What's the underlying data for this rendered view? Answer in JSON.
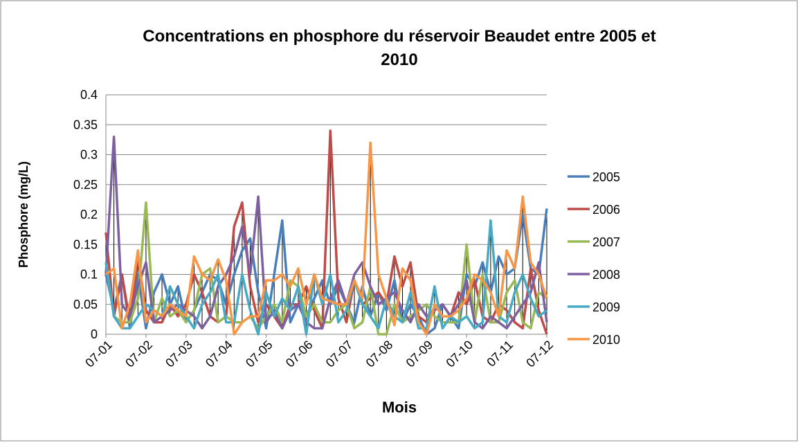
{
  "chart_data": {
    "type": "line",
    "title": "Concentrations en phosphore du réservoir Beaudet entre 2005 et 2010",
    "x_label": "Mois",
    "y_label": "Phosphore (mg/L)",
    "categories": [
      "07-01",
      null,
      null,
      null,
      null,
      "07-02",
      null,
      null,
      null,
      null,
      "07-03",
      null,
      null,
      null,
      null,
      "07-04",
      null,
      null,
      null,
      null,
      "07-05",
      null,
      null,
      null,
      null,
      "07-06",
      null,
      null,
      null,
      null,
      "07-07",
      null,
      null,
      null,
      null,
      "07-08",
      null,
      null,
      null,
      null,
      "07-09",
      null,
      null,
      null,
      null,
      "07-10",
      null,
      null,
      null,
      null,
      "07-11",
      null,
      null,
      null,
      null,
      "07-12"
    ],
    "series": [
      {
        "name": "2005",
        "color": "#4a7ebb",
        "values": [
          0.1,
          0.04,
          0.1,
          0.01,
          0.1,
          0.01,
          0.07,
          0.1,
          0.05,
          0.08,
          0.02,
          0.04,
          0.07,
          0.1,
          0.09,
          0.05,
          0.1,
          0.14,
          0.16,
          0.07,
          0.01,
          0.1,
          0.19,
          0.02,
          0.05,
          0.03,
          0.06,
          0.09,
          0.05,
          0.08,
          0.05,
          0.02,
          0.08,
          0.03,
          0.07,
          0.04,
          0.09,
          0.02,
          0.05,
          0.03,
          0.0,
          0.01,
          0.05,
          0.03,
          0.01,
          0.1,
          0.08,
          0.12,
          0.07,
          0.13,
          0.1,
          0.11,
          0.2,
          0.11,
          0.1,
          0.21
        ]
      },
      {
        "name": "2006",
        "color": "#be4b48",
        "values": [
          0.17,
          0.03,
          0.1,
          0.02,
          0.13,
          0.04,
          0.02,
          0.02,
          0.05,
          0.03,
          0.05,
          0.1,
          0.07,
          0.03,
          0.02,
          0.03,
          0.18,
          0.22,
          0.08,
          0.02,
          0.05,
          0.03,
          0.01,
          0.05,
          0.05,
          0.08,
          0.04,
          0.01,
          0.34,
          0.06,
          0.02,
          0.09,
          0.05,
          0.06,
          0.07,
          0.05,
          0.13,
          0.08,
          0.12,
          0.03,
          0.02,
          0.04,
          0.05,
          0.03,
          0.07,
          0.05,
          0.09,
          0.03,
          0.02,
          0.05,
          0.04,
          0.02,
          0.01,
          0.11,
          0.04,
          0.0
        ]
      },
      {
        "name": "2007",
        "color": "#98b954",
        "values": [
          0.12,
          0.03,
          0.02,
          0.02,
          0.06,
          0.22,
          0.02,
          0.06,
          0.03,
          0.04,
          0.02,
          0.04,
          0.1,
          0.11,
          0.02,
          0.03,
          0.02,
          0.02,
          0.03,
          0.01,
          0.03,
          0.05,
          0.02,
          0.09,
          0.08,
          0.03,
          0.05,
          0.02,
          0.02,
          0.04,
          0.05,
          0.01,
          0.02,
          0.08,
          0.0,
          0.0,
          0.05,
          0.02,
          0.03,
          0.04,
          0.05,
          0.03,
          0.02,
          0.02,
          0.02,
          0.15,
          0.02,
          0.1,
          0.02,
          0.02,
          0.07,
          0.09,
          0.02,
          0.01,
          0.07,
          0.06
        ]
      },
      {
        "name": "2008",
        "color": "#7d60a0",
        "values": [
          0.1,
          0.33,
          0.05,
          0.03,
          0.08,
          0.12,
          0.02,
          0.03,
          0.04,
          0.05,
          0.04,
          0.03,
          0.01,
          0.03,
          0.08,
          0.1,
          0.13,
          0.18,
          0.1,
          0.23,
          0.02,
          0.04,
          0.01,
          0.04,
          0.05,
          0.02,
          0.01,
          0.01,
          0.06,
          0.09,
          0.05,
          0.1,
          0.12,
          0.08,
          0.05,
          0.06,
          0.07,
          0.04,
          0.02,
          0.05,
          0.03,
          0.04,
          0.05,
          0.03,
          0.05,
          0.09,
          0.02,
          0.01,
          0.03,
          0.02,
          0.01,
          0.03,
          0.05,
          0.07,
          0.12,
          0.02
        ]
      },
      {
        "name": "2009",
        "color": "#46aac5",
        "values": [
          0.12,
          0.03,
          0.01,
          0.01,
          0.03,
          0.05,
          0.04,
          0.03,
          0.08,
          0.05,
          0.03,
          0.01,
          0.05,
          0.07,
          0.1,
          0.02,
          0.02,
          0.1,
          0.04,
          0.0,
          0.07,
          0.03,
          0.06,
          0.04,
          0.08,
          0.0,
          0.1,
          0.05,
          0.1,
          0.02,
          0.04,
          0.09,
          0.05,
          0.03,
          0.01,
          0.06,
          0.03,
          0.02,
          0.07,
          0.01,
          0.01,
          0.08,
          0.01,
          0.03,
          0.02,
          0.03,
          0.01,
          0.02,
          0.19,
          0.03,
          0.02,
          0.07,
          0.1,
          0.06,
          0.03,
          0.04
        ]
      },
      {
        "name": "2010",
        "color": "#f79646",
        "values": [
          0.1,
          0.11,
          0.01,
          0.05,
          0.14,
          0.02,
          0.04,
          0.03,
          0.05,
          0.04,
          0.03,
          0.13,
          0.1,
          0.09,
          0.125,
          0.09,
          0.0,
          0.02,
          0.03,
          0.03,
          0.09,
          0.09,
          0.1,
          0.08,
          0.11,
          0.05,
          0.1,
          0.06,
          0.055,
          0.05,
          0.05,
          0.09,
          0.06,
          0.32,
          0.1,
          0.06,
          0.015,
          0.11,
          0.09,
          0.02,
          0.0,
          0.05,
          0.03,
          0.03,
          0.04,
          0.06,
          0.1,
          0.09,
          0.07,
          0.03,
          0.14,
          0.11,
          0.23,
          0.12,
          0.1,
          0.06
        ]
      }
    ],
    "ylim": [
      0,
      0.4
    ],
    "yticks": [
      0,
      0.05,
      0.1,
      0.15,
      0.2,
      0.25,
      0.3,
      0.35,
      0.4
    ],
    "grid": true,
    "high_low_lines": true,
    "legend": "right"
  }
}
